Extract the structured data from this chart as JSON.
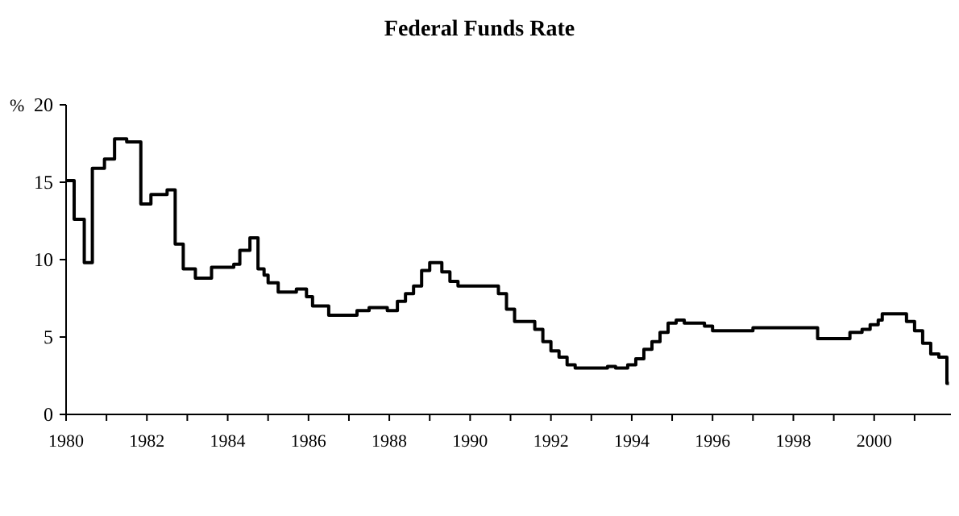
{
  "chart_data": {
    "type": "step",
    "title": "Federal Funds Rate",
    "ylabel": "%",
    "x": [
      1980.0,
      1980.2,
      1980.45,
      1980.65,
      1980.95,
      1981.2,
      1981.5,
      1981.85,
      1982.1,
      1982.5,
      1982.7,
      1982.9,
      1983.2,
      1983.6,
      1984.15,
      1984.3,
      1984.55,
      1984.75,
      1984.9,
      1985.0,
      1985.25,
      1985.7,
      1985.95,
      1986.1,
      1986.5,
      1987.2,
      1987.5,
      1987.95,
      1988.2,
      1988.4,
      1988.6,
      1988.8,
      1989.0,
      1989.3,
      1989.5,
      1989.7,
      1990.7,
      1990.9,
      1991.1,
      1991.6,
      1991.8,
      1992.0,
      1992.2,
      1992.4,
      1992.6,
      1993.4,
      1993.6,
      1993.9,
      1994.1,
      1994.3,
      1994.5,
      1994.7,
      1994.9,
      1995.1,
      1995.3,
      1995.8,
      1996.0,
      1997.0,
      1998.6,
      1999.4,
      1999.7,
      1999.9,
      2000.1,
      2000.2,
      2000.8,
      2001.0,
      2001.2,
      2001.4,
      2001.6,
      2001.8,
      2001.85
    ],
    "series": [
      {
        "color": "#000000",
        "values": [
          15.1,
          12.6,
          9.8,
          15.9,
          16.5,
          17.8,
          17.6,
          13.6,
          14.2,
          14.5,
          11.0,
          9.4,
          8.8,
          9.5,
          9.7,
          10.6,
          11.4,
          9.4,
          9.0,
          8.5,
          7.9,
          8.1,
          7.6,
          7.0,
          6.4,
          6.7,
          6.9,
          6.7,
          7.3,
          7.8,
          8.3,
          9.3,
          9.8,
          9.2,
          8.6,
          8.3,
          7.8,
          6.8,
          6.0,
          5.5,
          4.7,
          4.1,
          3.7,
          3.2,
          3.0,
          3.1,
          3.0,
          3.2,
          3.6,
          4.2,
          4.7,
          5.3,
          5.9,
          6.1,
          5.9,
          5.7,
          5.4,
          5.6,
          4.9,
          5.3,
          5.5,
          5.8,
          6.1,
          6.5,
          6.0,
          5.4,
          4.6,
          3.9,
          3.7,
          2.0,
          2.0
        ]
      }
    ],
    "xlim": [
      1980,
      2001.9
    ],
    "xticks": [
      1980,
      {
        "value": 1981,
        "label": null
      },
      1982,
      {
        "value": 1983,
        "label": null
      },
      1984,
      {
        "value": 1985,
        "label": null
      },
      1986,
      {
        "value": 1987,
        "label": null
      },
      1988,
      {
        "value": 1989,
        "label": null
      },
      1990,
      {
        "value": 1991,
        "label": null
      },
      1992,
      {
        "value": 1993,
        "label": null
      },
      1994,
      {
        "value": 1995,
        "label": null
      },
      1996,
      {
        "value": 1997,
        "label": null
      },
      1998,
      {
        "value": 1999,
        "label": null
      },
      2000,
      {
        "value": 2001,
        "label": null
      }
    ],
    "ylim": [
      0,
      20
    ],
    "yticks": [
      0,
      5,
      10,
      15,
      20
    ],
    "grid": false
  }
}
